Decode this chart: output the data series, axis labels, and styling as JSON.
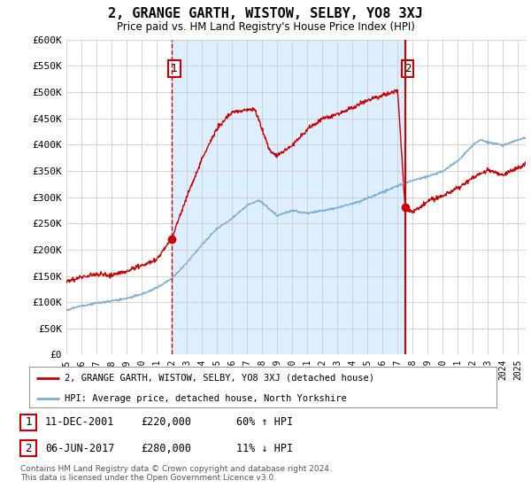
{
  "title": "2, GRANGE GARTH, WISTOW, SELBY, YO8 3XJ",
  "subtitle": "Price paid vs. HM Land Registry's House Price Index (HPI)",
  "ylim": [
    0,
    600000
  ],
  "yticks": [
    0,
    50000,
    100000,
    150000,
    200000,
    250000,
    300000,
    350000,
    400000,
    450000,
    500000,
    550000,
    600000
  ],
  "ytick_labels": [
    "£0",
    "£50K",
    "£100K",
    "£150K",
    "£200K",
    "£250K",
    "£300K",
    "£350K",
    "£400K",
    "£450K",
    "£500K",
    "£550K",
    "£600K"
  ],
  "property_color": "#cc0000",
  "hpi_color": "#7aadd4",
  "vline1_color": "#cc0000",
  "vline1_style": "--",
  "vline2_color": "#cc0000",
  "vline2_style": "-",
  "sale1_date_num": 2002.0,
  "sale1_price": 220000,
  "sale1_label": "1",
  "sale1_date_str": "11-DEC-2001",
  "sale1_pct": "60% ↑ HPI",
  "sale2_date_num": 2017.5,
  "sale2_price": 280000,
  "sale2_label": "2",
  "sale2_date_str": "06-JUN-2017",
  "sale2_pct": "11% ↓ HPI",
  "legend_property": "2, GRANGE GARTH, WISTOW, SELBY, YO8 3XJ (detached house)",
  "legend_hpi": "HPI: Average price, detached house, North Yorkshire",
  "footer": "Contains HM Land Registry data © Crown copyright and database right 2024.\nThis data is licensed under the Open Government Licence v3.0.",
  "background_color": "#ffffff",
  "grid_color": "#cccccc",
  "band_color": "#ddeeff"
}
